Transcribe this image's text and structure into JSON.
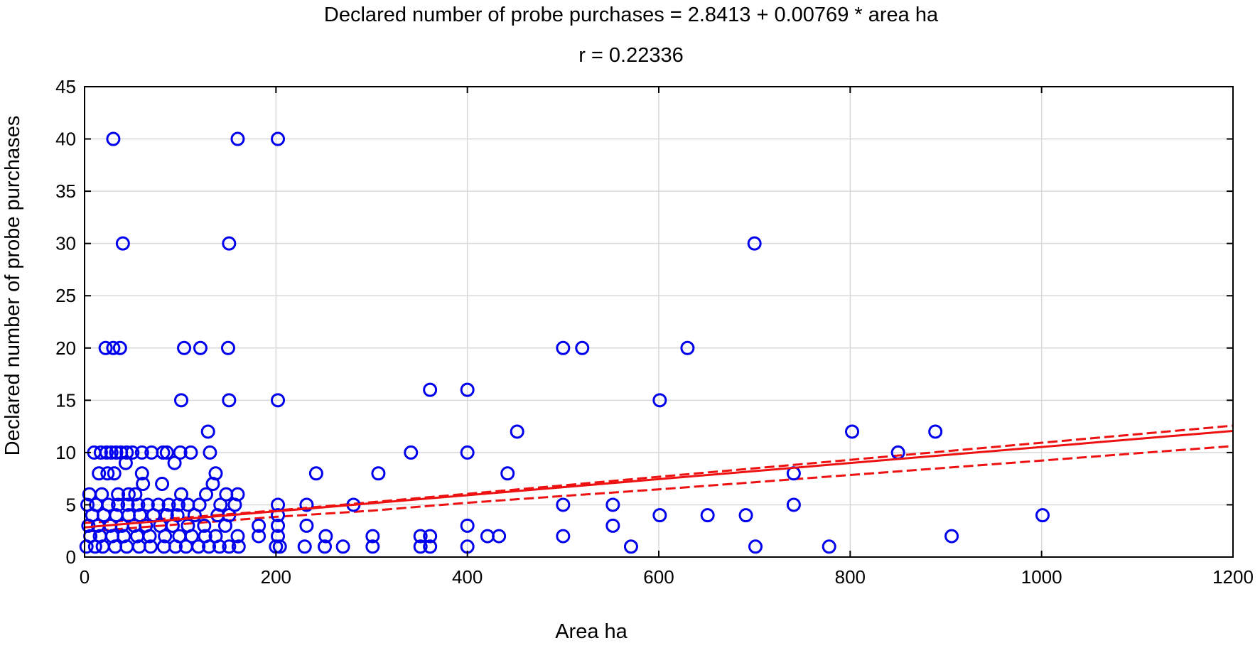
{
  "chart_data": {
    "type": "scatter",
    "title": "Declared number of probe purchases = 2.8413 + 0.00769 * area ha",
    "subtitle": "r =  0.22336",
    "xlabel": "Area ha",
    "ylabel": "Declared number of probe purchases",
    "xlim": [
      0,
      1200
    ],
    "ylim": [
      0,
      45
    ],
    "x_ticks": [
      "0",
      "200",
      "400",
      "600",
      "800",
      "1000",
      "1200"
    ],
    "y_ticks": [
      "0",
      "5",
      "10",
      "15",
      "20",
      "25",
      "30",
      "35",
      "40",
      "45"
    ],
    "grid": true,
    "regression": {
      "intercept": 2.8413,
      "slope": 0.00769,
      "confidence_band": {
        "x": [
          0,
          100,
          200,
          300,
          400,
          500,
          600,
          700,
          800,
          900,
          1000,
          1100,
          1200
        ],
        "upper": [
          3.27,
          3.74,
          4.46,
          5.25,
          6.05,
          6.86,
          7.68,
          8.49,
          9.3,
          10.12,
          10.94,
          11.75,
          12.57
        ],
        "lower": [
          2.42,
          3.14,
          3.85,
          4.44,
          5.19,
          5.84,
          6.48,
          7.16,
          7.85,
          8.54,
          9.23,
          9.93,
          10.62
        ]
      }
    },
    "series": [
      {
        "points": [
          [
            30,
            40
          ],
          [
            160,
            40
          ],
          [
            202,
            40
          ],
          [
            40,
            30
          ],
          [
            151,
            30
          ],
          [
            700,
            30
          ],
          [
            22,
            20
          ],
          [
            30,
            20
          ],
          [
            37,
            20
          ],
          [
            104,
            20
          ],
          [
            121,
            20
          ],
          [
            150,
            20
          ],
          [
            500,
            20
          ],
          [
            520,
            20
          ],
          [
            630,
            20
          ],
          [
            101,
            15
          ],
          [
            151,
            15
          ],
          [
            202,
            15
          ],
          [
            601,
            15
          ],
          [
            361,
            16
          ],
          [
            400,
            16
          ],
          [
            129,
            12
          ],
          [
            452,
            12
          ],
          [
            802,
            12
          ],
          [
            889,
            12
          ],
          [
            10,
            10
          ],
          [
            17,
            10
          ],
          [
            23,
            10
          ],
          [
            28,
            10
          ],
          [
            33,
            10
          ],
          [
            38,
            10
          ],
          [
            44,
            10
          ],
          [
            50,
            10
          ],
          [
            60,
            10
          ],
          [
            70,
            10
          ],
          [
            82,
            10
          ],
          [
            86,
            10
          ],
          [
            100,
            10
          ],
          [
            111,
            10
          ],
          [
            131,
            10
          ],
          [
            341,
            10
          ],
          [
            400,
            10
          ],
          [
            850,
            10
          ],
          [
            43,
            9
          ],
          [
            94,
            9
          ],
          [
            15,
            8
          ],
          [
            24,
            8
          ],
          [
            31,
            8
          ],
          [
            60,
            8
          ],
          [
            137,
            8
          ],
          [
            242,
            8
          ],
          [
            307,
            8
          ],
          [
            442,
            8
          ],
          [
            741,
            8
          ],
          [
            61,
            7
          ],
          [
            81,
            7
          ],
          [
            134,
            7
          ],
          [
            5,
            6
          ],
          [
            18,
            6
          ],
          [
            35,
            6
          ],
          [
            46,
            6
          ],
          [
            53,
            6
          ],
          [
            101,
            6
          ],
          [
            127,
            6
          ],
          [
            148,
            6
          ],
          [
            160,
            6
          ],
          [
            3,
            5
          ],
          [
            12,
            5
          ],
          [
            25,
            5
          ],
          [
            35,
            5
          ],
          [
            45,
            5
          ],
          [
            56,
            5
          ],
          [
            66,
            5
          ],
          [
            77,
            5
          ],
          [
            88,
            5
          ],
          [
            98,
            5
          ],
          [
            108,
            5
          ],
          [
            120,
            5
          ],
          [
            142,
            5
          ],
          [
            157,
            5
          ],
          [
            202,
            5
          ],
          [
            232,
            5
          ],
          [
            281,
            5
          ],
          [
            500,
            5
          ],
          [
            552,
            5
          ],
          [
            741,
            5
          ],
          [
            8,
            4
          ],
          [
            20,
            4
          ],
          [
            33,
            4
          ],
          [
            46,
            4
          ],
          [
            58,
            4
          ],
          [
            72,
            4
          ],
          [
            86,
            4
          ],
          [
            97,
            4
          ],
          [
            115,
            4
          ],
          [
            139,
            4
          ],
          [
            151,
            4
          ],
          [
            202,
            4
          ],
          [
            601,
            4
          ],
          [
            651,
            4
          ],
          [
            691,
            4
          ],
          [
            1001,
            4
          ],
          [
            4,
            3
          ],
          [
            14,
            3
          ],
          [
            27,
            3
          ],
          [
            39,
            3
          ],
          [
            52,
            3
          ],
          [
            64,
            3
          ],
          [
            79,
            3
          ],
          [
            92,
            3
          ],
          [
            108,
            3
          ],
          [
            125,
            3
          ],
          [
            147,
            3
          ],
          [
            182,
            3
          ],
          [
            202,
            3
          ],
          [
            232,
            3
          ],
          [
            400,
            3
          ],
          [
            552,
            3
          ],
          [
            6,
            2
          ],
          [
            16,
            2
          ],
          [
            29,
            2
          ],
          [
            41,
            2
          ],
          [
            55,
            2
          ],
          [
            68,
            2
          ],
          [
            84,
            2
          ],
          [
            99,
            2
          ],
          [
            112,
            2
          ],
          [
            126,
            2
          ],
          [
            137,
            2
          ],
          [
            160,
            2
          ],
          [
            182,
            2
          ],
          [
            202,
            2
          ],
          [
            252,
            2
          ],
          [
            301,
            2
          ],
          [
            351,
            2
          ],
          [
            361,
            2
          ],
          [
            421,
            2
          ],
          [
            433,
            2
          ],
          [
            500,
            2
          ],
          [
            906,
            2
          ],
          [
            2,
            1
          ],
          [
            11,
            1
          ],
          [
            19,
            1
          ],
          [
            32,
            1
          ],
          [
            44,
            1
          ],
          [
            57,
            1
          ],
          [
            69,
            1
          ],
          [
            83,
            1
          ],
          [
            95,
            1
          ],
          [
            106,
            1
          ],
          [
            119,
            1
          ],
          [
            130,
            1
          ],
          [
            141,
            1
          ],
          [
            151,
            1
          ],
          [
            161,
            1
          ],
          [
            200,
            1
          ],
          [
            204,
            1
          ],
          [
            230,
            1
          ],
          [
            251,
            1
          ],
          [
            270,
            1
          ],
          [
            301,
            1
          ],
          [
            351,
            1
          ],
          [
            361,
            1
          ],
          [
            400,
            1
          ],
          [
            571,
            1
          ],
          [
            701,
            1
          ],
          [
            778,
            1
          ]
        ]
      }
    ],
    "colors": {
      "points": "#0000ee",
      "regression": "#ee1111",
      "grid": "#d8d8d8",
      "frame": "#000000"
    }
  }
}
